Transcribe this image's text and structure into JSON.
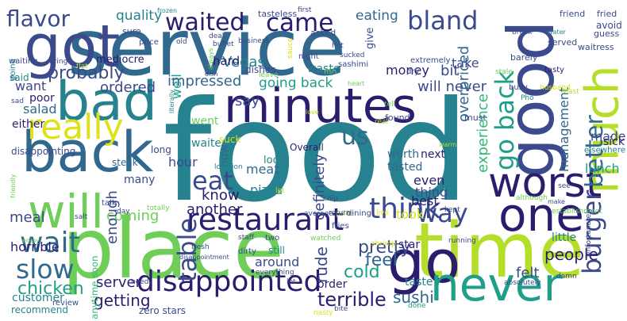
{
  "palette": {
    "navy": "#2b1d6e",
    "indigo": "#3b4a8c",
    "blue": "#31688e",
    "teal": "#26828e",
    "seagreen": "#1f9e89",
    "green": "#35b779",
    "lime": "#6ece58",
    "yellowgreen": "#b5de2b",
    "yellow": "#dde318",
    "purple": "#44154f"
  },
  "words": [
    {
      "text": "food",
      "color": "#26828e"
    },
    {
      "text": "service",
      "color": "#31688e"
    },
    {
      "text": "place",
      "color": "#6ece58"
    },
    {
      "text": "time",
      "color": "#b5de2b"
    },
    {
      "text": "got",
      "color": "#3b4a8c"
    },
    {
      "text": "minutes",
      "color": "#2b1d6e"
    },
    {
      "text": "back",
      "color": "#31688e"
    },
    {
      "text": "bad",
      "color": "#26828e"
    },
    {
      "text": "one",
      "color": "#2b1d6e"
    },
    {
      "text": "good",
      "color": "#3b4a8c"
    },
    {
      "text": "go",
      "color": "#2b1d6e"
    },
    {
      "text": "never",
      "color": "#1f9e89"
    },
    {
      "text": "worst",
      "color": "#2b1d6e"
    },
    {
      "text": "will",
      "color": "#6ece58"
    },
    {
      "text": "much",
      "color": "#b5de2b"
    },
    {
      "text": "really",
      "color": "#dde318"
    },
    {
      "text": "restaurant",
      "color": "#2b1d6e"
    },
    {
      "text": "disappointed",
      "color": "#2b1d6e"
    },
    {
      "text": "wait",
      "color": "#31688e"
    },
    {
      "text": "think",
      "color": "#3b4a8c"
    },
    {
      "text": "slow",
      "color": "#31688e"
    },
    {
      "text": "table",
      "color": "#3b4a8c"
    },
    {
      "text": "eat",
      "color": "#3b4a8c"
    },
    {
      "text": "came",
      "color": "#2b1d6e"
    },
    {
      "text": "waited",
      "color": "#2b1d6e"
    },
    {
      "text": "bland",
      "color": "#3b4a8c"
    },
    {
      "text": "flavor",
      "color": "#3b4a8c"
    },
    {
      "text": "us",
      "color": "#31688e"
    },
    {
      "text": "way",
      "color": "#3b4a8c"
    },
    {
      "text": "burger",
      "color": "#3b4a8c"
    },
    {
      "text": "better",
      "color": "#31688e"
    },
    {
      "text": "go back",
      "color": "#1f9e89"
    },
    {
      "text": "probably",
      "color": "#3b4a8c"
    },
    {
      "text": "ordered",
      "color": "#3b4a8c"
    },
    {
      "text": "quality",
      "color": "#26828e"
    },
    {
      "text": "Vegas",
      "color": "#26828e"
    },
    {
      "text": "eating",
      "color": "#31688e"
    },
    {
      "text": "pretty",
      "color": "#3b4a8c"
    },
    {
      "text": "rude",
      "color": "#3b4a8c"
    },
    {
      "text": "cold",
      "color": "#1f9e89"
    },
    {
      "text": "feel",
      "color": "#31688e"
    },
    {
      "text": "terrible",
      "color": "#2b1d6e"
    },
    {
      "text": "chicken",
      "color": "#1f9e89"
    },
    {
      "text": "getting",
      "color": "#2b1d6e"
    },
    {
      "text": "server",
      "color": "#2b1d6e"
    },
    {
      "text": "sushi",
      "color": "#31688e"
    },
    {
      "text": "felt",
      "color": "#3b4a8c"
    },
    {
      "text": "people",
      "color": "#2b1d6e"
    },
    {
      "text": "lunch",
      "color": "#1f9e89"
    },
    {
      "text": "made",
      "color": "#3b4a8c"
    },
    {
      "text": "management",
      "color": "#31688e"
    },
    {
      "text": "experience",
      "color": "#35b779"
    },
    {
      "text": "even",
      "color": "#2b1d6e"
    },
    {
      "text": "thing",
      "color": "#3b4a8c"
    },
    {
      "text": "took",
      "color": "#dde318"
    },
    {
      "text": "best",
      "color": "#2b1d6e"
    },
    {
      "text": "definitely",
      "color": "#3b4a8c"
    },
    {
      "text": "know",
      "color": "#2b1d6e"
    },
    {
      "text": "another",
      "color": "#2b1d6e"
    },
    {
      "text": "meal",
      "color": "#3b4a8c"
    },
    {
      "text": "coming",
      "color": "#6ece58"
    },
    {
      "text": "enough",
      "color": "#3b4a8c"
    },
    {
      "text": "hour",
      "color": "#3b4a8c"
    },
    {
      "text": "meat",
      "color": "#31688e"
    },
    {
      "text": "pizza",
      "color": "#26828e"
    },
    {
      "text": "well",
      "color": "#1f9e89"
    },
    {
      "text": "impressed",
      "color": "#31688e"
    },
    {
      "text": "say",
      "color": "#3b4a8c"
    },
    {
      "text": "going back",
      "color": "#1f9e89"
    },
    {
      "text": "will never",
      "color": "#3b4a8c"
    },
    {
      "text": "overpriced",
      "color": "#31688e"
    },
    {
      "text": "bit",
      "color": "#3b4a8c"
    },
    {
      "text": "take",
      "color": "#3b4a8c"
    },
    {
      "text": "money",
      "color": "#2b1d6e"
    },
    {
      "text": "hard",
      "color": "#2b1d6e"
    },
    {
      "text": "mediocre",
      "color": "#2b1d6e"
    },
    {
      "text": "want",
      "color": "#3b4a8c"
    },
    {
      "text": "salad",
      "color": "#31688e"
    },
    {
      "text": "poor",
      "color": "#2b1d6e"
    },
    {
      "text": "said",
      "color": "#26828e"
    },
    {
      "text": "either",
      "color": "#2b1d6e"
    },
    {
      "text": "horrible",
      "color": "#2b1d6e"
    },
    {
      "text": "customer",
      "color": "#26828e"
    },
    {
      "text": "recommend",
      "color": "#26828e"
    },
    {
      "text": "zero stars",
      "color": "#3b4a8c"
    },
    {
      "text": "anytime soon",
      "color": "#35b779"
    },
    {
      "text": "many",
      "color": "#3b4a8c"
    },
    {
      "text": "waiter",
      "color": "#26828e"
    },
    {
      "text": "went",
      "color": "#6ece58"
    },
    {
      "text": "now",
      "color": "#31688e"
    },
    {
      "text": "look",
      "color": "#26828e"
    },
    {
      "text": "tasted",
      "color": "#31688e"
    },
    {
      "text": "worth",
      "color": "#31688e"
    },
    {
      "text": "next",
      "color": "#2b1d6e"
    },
    {
      "text": "star",
      "color": "#2b1d6e"
    },
    {
      "text": "around",
      "color": "#3b4a8c"
    },
    {
      "text": "still",
      "color": "#26828e"
    },
    {
      "text": "order",
      "color": "#2b1d6e"
    },
    {
      "text": "taste",
      "color": "#26828e"
    },
    {
      "text": "little",
      "color": "#26828e"
    },
    {
      "text": "sick",
      "color": "#2b1d6e"
    },
    {
      "text": "long",
      "color": "#3b4a8c"
    },
    {
      "text": "disappointing",
      "color": "#3b4a8c"
    },
    {
      "text": "steak",
      "color": "#31688e"
    },
    {
      "text": "suck",
      "color": "#dde318"
    },
    {
      "text": "Overall",
      "color": "#2b1d6e"
    },
    {
      "text": "found",
      "color": "#3b4a8c"
    },
    {
      "text": "must",
      "color": "#3b4a8c"
    },
    {
      "text": "elsewhere",
      "color": "#26828e"
    },
    {
      "text": "tasty",
      "color": "#2b1d6e"
    },
    {
      "text": "avoid",
      "color": "#3b4a8c"
    },
    {
      "text": "guess",
      "color": "#3b4a8c"
    },
    {
      "text": "served",
      "color": "#3b4a8c"
    },
    {
      "text": "waitress",
      "color": "#3b4a8c"
    },
    {
      "text": "friend",
      "color": "#3b4a8c"
    },
    {
      "text": "fried",
      "color": "#3b4a8c"
    },
    {
      "text": "barely",
      "color": "#3b4a8c"
    },
    {
      "text": "break",
      "color": "#3b4a8c"
    },
    {
      "text": "water",
      "color": "#26828e"
    },
    {
      "text": "asked",
      "color": "#3b4a8c"
    },
    {
      "text": "tasteless",
      "color": "#3b4a8c"
    },
    {
      "text": "first",
      "color": "#3b4a8c"
    },
    {
      "text": "frozen",
      "color": "#26828e"
    },
    {
      "text": "sure",
      "color": "#3b4a8c"
    },
    {
      "text": "price",
      "color": "#3b4a8c"
    },
    {
      "text": "old",
      "color": "#3b4a8c"
    },
    {
      "text": "deal",
      "color": "#3b4a8c"
    },
    {
      "text": "buffet",
      "color": "#3b4a8c"
    },
    {
      "text": "business",
      "color": "#3b4a8c"
    },
    {
      "text": "sauce",
      "color": "#dde318"
    },
    {
      "text": "hot",
      "color": "#3b4a8c"
    },
    {
      "text": "sucked",
      "color": "#3b4a8c"
    },
    {
      "text": "night",
      "color": "#3b4a8c"
    },
    {
      "text": "sashimi",
      "color": "#3b4a8c"
    },
    {
      "text": "extremely",
      "color": "#3b4a8c"
    },
    {
      "text": "dry",
      "color": "#3b4a8c"
    },
    {
      "text": "dishes",
      "color": "#3b4a8c"
    },
    {
      "text": "waste",
      "color": "#26828e"
    },
    {
      "text": "give",
      "color": "#3b4a8c"
    },
    {
      "text": "going",
      "color": "#26828e"
    },
    {
      "text": "waiting",
      "color": "#3b4a8c"
    },
    {
      "text": "bring",
      "color": "#3b4a8c"
    },
    {
      "text": "fish",
      "color": "#6ece58"
    },
    {
      "text": "heart",
      "color": "#6ece58"
    },
    {
      "text": "leave",
      "color": "#6ece58"
    },
    {
      "text": "stale",
      "color": "#6ece58"
    },
    {
      "text": "busy",
      "color": "#3b4a8c"
    },
    {
      "text": "husband",
      "color": "#dde318"
    },
    {
      "text": "least",
      "color": "#b5de2b"
    },
    {
      "text": "Pho",
      "color": "#26828e"
    },
    {
      "text": "tell",
      "color": "#6ece58"
    },
    {
      "text": "love",
      "color": "#b5de2b"
    },
    {
      "text": "real",
      "color": "#b5de2b"
    },
    {
      "text": "warm",
      "color": "#b5de2b"
    },
    {
      "text": "literally",
      "color": "#26828e"
    },
    {
      "text": "sad",
      "color": "#3b4a8c"
    },
    {
      "text": "friendly",
      "color": "#6ece58"
    },
    {
      "text": "location",
      "color": "#26828e"
    },
    {
      "text": "let",
      "color": "#b5de2b"
    },
    {
      "text": "talk",
      "color": "#3b4a8c"
    },
    {
      "text": "day",
      "color": "#3b4a8c"
    },
    {
      "text": "salt",
      "color": "#3b4a8c"
    },
    {
      "text": "totally",
      "color": "#6ece58"
    },
    {
      "text": "average",
      "color": "#3b4a8c"
    },
    {
      "text": "price",
      "color": "#b5de2b"
    },
    {
      "text": "dining",
      "color": "#3b4a8c"
    },
    {
      "text": "live",
      "color": "#dde318"
    },
    {
      "text": "return",
      "color": "#3b4a8c"
    },
    {
      "text": "chip",
      "color": "#3b4a8c"
    },
    {
      "text": "fries",
      "color": "#3b4a8c"
    },
    {
      "text": "kept",
      "color": "#3b4a8c"
    },
    {
      "text": "see",
      "color": "#3b4a8c"
    },
    {
      "text": "although",
      "color": "#6ece58"
    },
    {
      "text": "make",
      "color": "#3b4a8c"
    },
    {
      "text": "establishment",
      "color": "#6ece58"
    },
    {
      "text": "Unfortunately",
      "color": "#3b4a8c"
    },
    {
      "text": "shrimp",
      "color": "#dde318"
    },
    {
      "text": "watched",
      "color": "#6ece58"
    },
    {
      "text": "staff",
      "color": "#3b4a8c"
    },
    {
      "text": "running",
      "color": "#3b4a8c"
    },
    {
      "text": "two",
      "color": "#3b4a8c"
    },
    {
      "text": "dirty",
      "color": "#3b4a8c"
    },
    {
      "text": "fresh",
      "color": "#3b4a8c"
    },
    {
      "text": "disappointment",
      "color": "#3b4a8c"
    },
    {
      "text": "everything",
      "color": "#3b4a8c"
    },
    {
      "text": "lot",
      "color": "#3b4a8c"
    },
    {
      "text": "absolutely",
      "color": "#3b4a8c"
    },
    {
      "text": "damn",
      "color": "#3b4a8c"
    },
    {
      "text": "done",
      "color": "#1f9e89"
    },
    {
      "text": "nasty",
      "color": "#dde318"
    },
    {
      "text": "bite",
      "color": "#3b4a8c"
    },
    {
      "text": "need",
      "color": "#3b4a8c"
    },
    {
      "text": "review",
      "color": "#3b4a8c"
    },
    {
      "text": "enjoy",
      "color": "#6ece58"
    },
    {
      "text": "always",
      "color": "#6ece58"
    },
    {
      "text": "dish",
      "color": "#3b4a8c"
    },
    {
      "text": "flat",
      "color": "#b5de2b"
    }
  ]
}
